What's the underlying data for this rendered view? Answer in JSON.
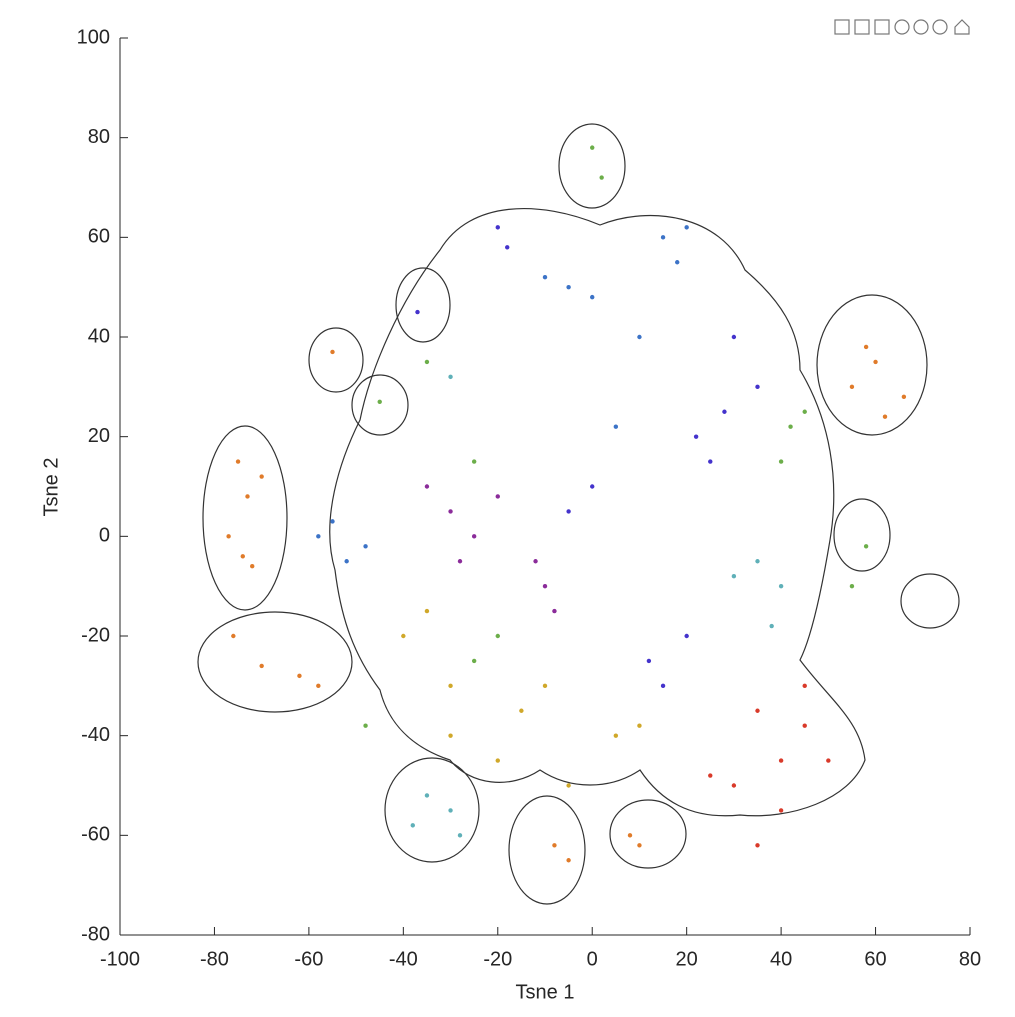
{
  "chart_data": {
    "type": "scatter",
    "xlabel": "Tsne 1",
    "ylabel": "Tsne 2",
    "xlim": [
      -100,
      80
    ],
    "ylim": [
      -80,
      100
    ],
    "xticks": [
      -100,
      -80,
      -60,
      -40,
      -20,
      0,
      20,
      40,
      60,
      80
    ],
    "yticks": [
      -80,
      -60,
      -40,
      -20,
      0,
      20,
      40,
      60,
      80,
      100
    ],
    "grid": false,
    "series": [
      {
        "color": "#e07b2a",
        "x": [
          -75,
          -73,
          -70,
          -77,
          -74,
          -72,
          -76,
          -70,
          -62,
          -58,
          -55,
          58,
          60,
          55,
          66,
          62,
          -5,
          -8,
          10,
          8
        ],
        "values": [
          15,
          8,
          12,
          0,
          -4,
          -6,
          -20,
          -26,
          -28,
          -30,
          37,
          38,
          35,
          30,
          28,
          24,
          -65,
          -62,
          -62,
          -60
        ]
      },
      {
        "color": "#3c73c7",
        "x": [
          -55,
          -52,
          -48,
          -58,
          15,
          18,
          20,
          -5,
          -10,
          0,
          10,
          5
        ],
        "values": [
          3,
          -5,
          -2,
          0,
          60,
          55,
          62,
          50,
          52,
          48,
          40,
          22
        ]
      },
      {
        "color": "#4433cc",
        "x": [
          -20,
          -18,
          -37,
          30,
          35,
          28,
          25,
          22,
          0,
          -5,
          12,
          15,
          20
        ],
        "values": [
          62,
          58,
          45,
          40,
          30,
          25,
          15,
          20,
          10,
          5,
          -25,
          -30,
          -20
        ]
      },
      {
        "color": "#8b2c9a",
        "x": [
          -35,
          -30,
          -25,
          -28,
          -20,
          -10,
          -8,
          -12
        ],
        "values": [
          10,
          5,
          0,
          -5,
          8,
          -10,
          -15,
          -5
        ]
      },
      {
        "color": "#6cae4a",
        "x": [
          0,
          2,
          -35,
          -45,
          -25,
          -20,
          -25,
          42,
          40,
          45,
          58,
          -48,
          55
        ],
        "values": [
          78,
          72,
          35,
          27,
          15,
          -20,
          -25,
          22,
          15,
          25,
          -2,
          -38,
          -10
        ]
      },
      {
        "color": "#5fb0b8",
        "x": [
          -35,
          -30,
          -38,
          -28,
          35,
          40,
          30,
          38,
          -30
        ],
        "values": [
          -52,
          -55,
          -58,
          -60,
          -5,
          -10,
          -8,
          -18,
          32
        ]
      },
      {
        "color": "#d0a82a",
        "x": [
          -40,
          -35,
          -30,
          -15,
          -10,
          5,
          10,
          -5,
          -20,
          -30
        ],
        "values": [
          -20,
          -15,
          -30,
          -35,
          -30,
          -40,
          -38,
          -50,
          -45,
          -40
        ]
      },
      {
        "color": "#d93a2a",
        "x": [
          35,
          40,
          45,
          30,
          25,
          50,
          40,
          35,
          45
        ],
        "values": [
          -35,
          -45,
          -38,
          -50,
          -48,
          -45,
          -55,
          -62,
          -30
        ]
      }
    ]
  }
}
